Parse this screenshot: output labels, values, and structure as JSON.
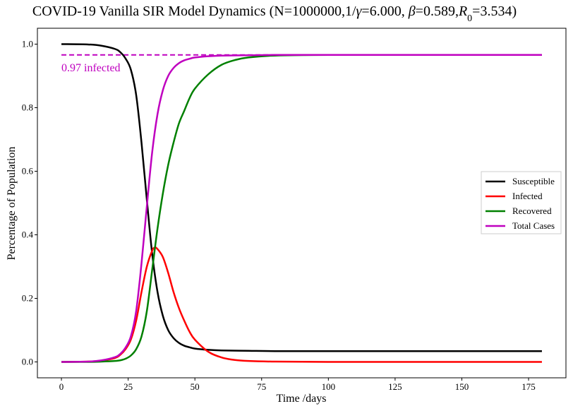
{
  "chart_data": {
    "type": "line",
    "title_parts": {
      "prefix": "COVID-19 Vanilla SIR Model Dynamics (N=1000000,1/",
      "gamma_symbol": "γ",
      "gamma_value": "=6.000, ",
      "beta_symbol": "β",
      "beta_value": "=0.589,",
      "r_symbol": "R",
      "r_subscript": "0",
      "r_value": "=3.534)"
    },
    "xlabel": "Time /days",
    "ylabel": "Percentage of Population",
    "xlim": [
      -9,
      189
    ],
    "ylim": [
      -0.05,
      1.05
    ],
    "xticks": [
      0,
      25,
      50,
      75,
      100,
      125,
      150,
      175
    ],
    "yticks": [
      0.0,
      0.2,
      0.4,
      0.6,
      0.8,
      1.0
    ],
    "ytick_labels": [
      "0.0",
      "0.2",
      "0.4",
      "0.6",
      "0.8",
      "1.0"
    ],
    "legend_position": "center-right",
    "grid": false,
    "series": [
      {
        "name": "Susceptible",
        "color": "#000000",
        "x": [
          0,
          10,
          15,
          20,
          22,
          24,
          26,
          28,
          30,
          32,
          34,
          36,
          38,
          40,
          42,
          44,
          46,
          48,
          50,
          55,
          60,
          70,
          80,
          100,
          140,
          180
        ],
        "values": [
          1.0,
          0.999,
          0.995,
          0.985,
          0.975,
          0.955,
          0.92,
          0.84,
          0.69,
          0.51,
          0.34,
          0.22,
          0.145,
          0.1,
          0.075,
          0.06,
          0.051,
          0.046,
          0.042,
          0.038,
          0.036,
          0.035,
          0.034,
          0.034,
          0.034,
          0.034
        ]
      },
      {
        "name": "Infected",
        "color": "#ff0000",
        "x": [
          0,
          10,
          15,
          20,
          22,
          24,
          26,
          28,
          30,
          32,
          34,
          35,
          36,
          38,
          40,
          42,
          44,
          46,
          48,
          50,
          55,
          60,
          65,
          70,
          80,
          100,
          140,
          180
        ],
        "values": [
          0.0,
          0.001,
          0.004,
          0.012,
          0.022,
          0.04,
          0.07,
          0.13,
          0.22,
          0.3,
          0.35,
          0.36,
          0.355,
          0.33,
          0.28,
          0.22,
          0.17,
          0.13,
          0.095,
          0.07,
          0.032,
          0.014,
          0.006,
          0.003,
          0.001,
          0.0,
          0.0,
          0.0
        ]
      },
      {
        "name": "Recovered",
        "color": "#008000",
        "x": [
          0,
          10,
          15,
          20,
          22,
          24,
          26,
          28,
          30,
          32,
          34,
          36,
          38,
          40,
          42,
          44,
          46,
          48,
          50,
          55,
          60,
          65,
          70,
          80,
          100,
          140,
          180
        ],
        "values": [
          0.0,
          0.0,
          0.001,
          0.003,
          0.005,
          0.01,
          0.02,
          0.04,
          0.08,
          0.16,
          0.29,
          0.42,
          0.53,
          0.62,
          0.69,
          0.75,
          0.79,
          0.83,
          0.86,
          0.905,
          0.935,
          0.95,
          0.958,
          0.964,
          0.966,
          0.966,
          0.966
        ]
      },
      {
        "name": "Total Cases",
        "color": "#bf00bf",
        "x": [
          0,
          10,
          15,
          20,
          22,
          24,
          26,
          28,
          30,
          32,
          34,
          36,
          38,
          40,
          42,
          44,
          46,
          48,
          50,
          55,
          60,
          70,
          80,
          100,
          140,
          180
        ],
        "values": [
          0.0,
          0.001,
          0.005,
          0.015,
          0.025,
          0.045,
          0.08,
          0.16,
          0.31,
          0.49,
          0.66,
          0.78,
          0.855,
          0.9,
          0.925,
          0.94,
          0.949,
          0.954,
          0.958,
          0.962,
          0.964,
          0.965,
          0.966,
          0.966,
          0.966,
          0.966
        ]
      }
    ],
    "reference_line": {
      "y": 0.966,
      "x_start": 0,
      "x_end": 180,
      "color": "#bf00bf",
      "style": "dashed"
    },
    "annotation": {
      "text": "0.97 infected",
      "x": 0,
      "y": 0.966,
      "color": "#bf00bf"
    }
  }
}
